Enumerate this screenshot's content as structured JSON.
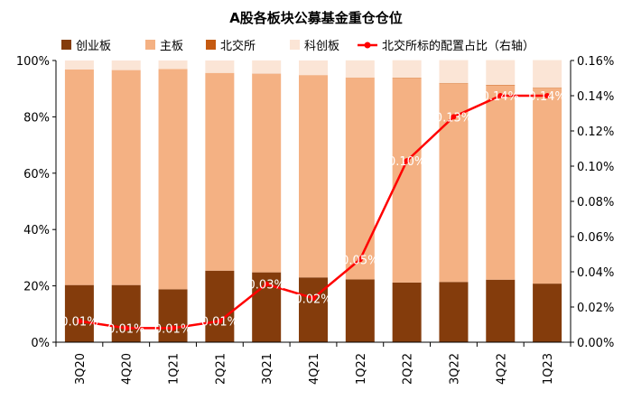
{
  "chart_data": {
    "type": "bar",
    "stacked": true,
    "title": "A股各板块公募基金重仓仓位",
    "categories": [
      "3Q20",
      "4Q20",
      "1Q21",
      "2Q21",
      "3Q21",
      "4Q21",
      "1Q22",
      "2Q22",
      "3Q22",
      "4Q22",
      "1Q23"
    ],
    "series": [
      {
        "name": "创业板",
        "color": "#843C0C",
        "values": [
          20.3,
          20.3,
          18.8,
          25.4,
          24.8,
          23.0,
          22.3,
          21.2,
          21.4,
          22.2,
          20.8
        ]
      },
      {
        "name": "主板",
        "color": "#F4B183",
        "values": [
          76.5,
          76.3,
          78.2,
          70.2,
          70.5,
          71.8,
          71.6,
          72.6,
          70.5,
          69.0,
          69.5
        ]
      },
      {
        "name": "北交所",
        "color": "#C55A11",
        "values": [
          0.01,
          0.01,
          0.01,
          0.01,
          0.03,
          0.02,
          0.05,
          0.1,
          0.13,
          0.14,
          0.14
        ]
      },
      {
        "name": "科创板",
        "color": "#FBE5D6",
        "values": [
          3.2,
          3.4,
          3.0,
          4.4,
          4.7,
          5.2,
          6.1,
          6.2,
          8.1,
          8.8,
          9.7
        ]
      }
    ],
    "line": {
      "name": "北交所标的配置占比（右轴）",
      "color": "#FF0000",
      "axis": "right",
      "values": [
        0.012,
        0.008,
        0.008,
        0.012,
        0.033,
        0.025,
        0.047,
        0.103,
        0.128,
        0.14,
        0.14
      ],
      "labels": [
        "0.01%",
        "0.01%",
        "0.01%",
        "0.01%",
        "0.03%",
        "0.02%",
        "0.05%",
        "0.10%",
        "0.13%",
        "0.14%",
        "0.14%"
      ]
    },
    "y_left": {
      "ylim": [
        0,
        100
      ],
      "ticks": [
        "0%",
        "20%",
        "40%",
        "60%",
        "80%",
        "100%"
      ]
    },
    "y_right": {
      "ylim": [
        0,
        0.16
      ],
      "ticks": [
        "0.00%",
        "0.02%",
        "0.04%",
        "0.06%",
        "0.08%",
        "0.10%",
        "0.12%",
        "0.14%",
        "0.16%"
      ]
    },
    "legend_position": "top",
    "grid": false
  }
}
